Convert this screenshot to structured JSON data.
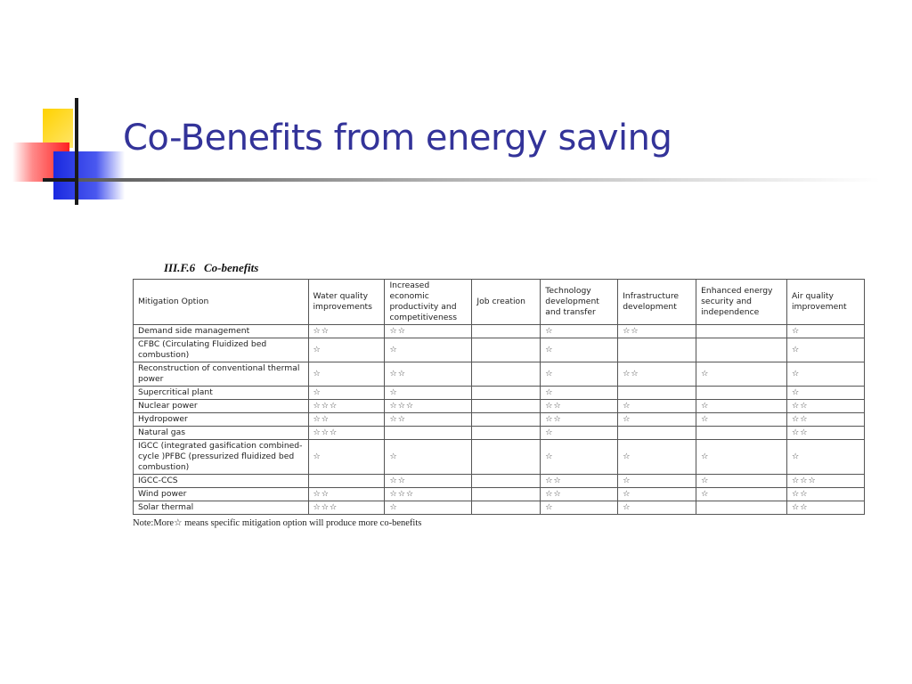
{
  "slide": {
    "title": "Co-Benefits from energy saving"
  },
  "table": {
    "caption_id": "III.F.6",
    "caption": "Co-benefits",
    "headers": [
      "Mitigation Option",
      "Water quality improvements",
      "Increased economic productivity and competitiveness",
      "Job creation",
      "Technology development and transfer",
      "Infrastructure development",
      "Enhanced energy security and independence",
      "Air quality improvement"
    ],
    "rows": [
      [
        "Demand side management",
        "☆☆",
        "☆☆",
        "",
        "☆",
        "☆☆",
        "",
        "☆"
      ],
      [
        "CFBC (Circulating Fluidized bed combustion)",
        "☆",
        "☆",
        "",
        "☆",
        "",
        "",
        "☆"
      ],
      [
        "Reconstruction of conventional thermal power",
        "☆",
        "☆☆",
        "",
        "☆",
        "☆☆",
        "☆",
        "☆"
      ],
      [
        "Supercritical  plant",
        "☆",
        "☆",
        "",
        "☆",
        "",
        "",
        "☆"
      ],
      [
        "Nuclear power",
        "☆☆☆",
        "☆☆☆",
        "",
        "☆☆",
        "☆",
        "☆",
        "☆☆"
      ],
      [
        "Hydropower",
        "☆☆",
        "☆☆",
        "",
        "☆☆",
        "☆",
        "☆",
        "☆☆"
      ],
      [
        "Natural gas",
        "☆☆☆",
        "",
        "",
        "☆",
        "",
        "",
        "☆☆"
      ],
      [
        "IGCC (integrated gasification combined-cycle )PFBC (pressurized fluidized bed combustion)",
        "☆",
        "☆",
        "",
        "☆",
        "☆",
        "☆",
        "☆"
      ],
      [
        "IGCC-CCS",
        "",
        "☆☆",
        "",
        "☆☆",
        "☆",
        "☆",
        "☆☆☆"
      ],
      [
        "Wind power",
        "☆☆",
        "☆☆☆",
        "",
        "☆☆",
        "☆",
        "☆",
        "☆☆"
      ],
      [
        "Solar thermal",
        "☆☆☆",
        "☆",
        "",
        "☆",
        "☆",
        "",
        "☆☆"
      ]
    ],
    "note": "Note:More☆ means specific mitigation option will produce more co-benefits"
  }
}
